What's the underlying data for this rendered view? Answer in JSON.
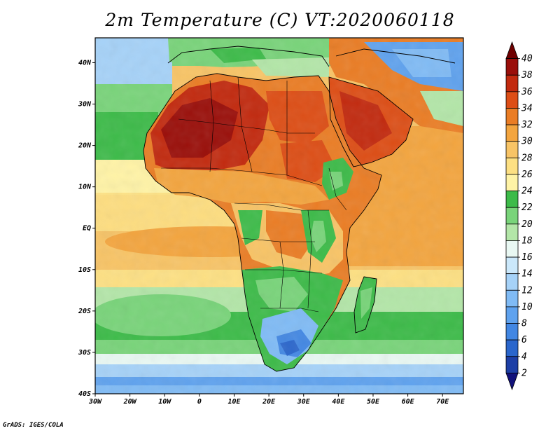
{
  "title": "2m Temperature (C) VT:2020060118",
  "credit": "GrADS: IGES/COLA",
  "map": {
    "lon_range": [
      -30,
      76
    ],
    "lat_range": [
      -40,
      46
    ],
    "x_ticks": [
      "30W",
      "20W",
      "10W",
      "0",
      "10E",
      "20E",
      "30E",
      "40E",
      "50E",
      "60E",
      "70E"
    ],
    "y_ticks": [
      "40S",
      "30S",
      "20S",
      "10S",
      "EQ",
      "10N",
      "20N",
      "30N",
      "40N"
    ],
    "projection": "lat-lon"
  },
  "colorbar": {
    "levels": [
      "2",
      "4",
      "6",
      "8",
      "10",
      "12",
      "14",
      "16",
      "18",
      "20",
      "22",
      "24",
      "26",
      "28",
      "30",
      "32",
      "34",
      "36",
      "38",
      "40"
    ],
    "colors": [
      "#11117a",
      "#1d3fa6",
      "#2a66cc",
      "#4287e3",
      "#5fa2ee",
      "#80bbf5",
      "#a6d2f8",
      "#cbe8fb",
      "#e9f8f3",
      "#b3e6a8",
      "#79d47a",
      "#3dbb49",
      "#fff3a6",
      "#fde083",
      "#f8c466",
      "#f3a53f",
      "#ea7d25",
      "#dd4e16",
      "#c22a0f",
      "#9a0f0a",
      "#6e0000"
    ]
  }
}
